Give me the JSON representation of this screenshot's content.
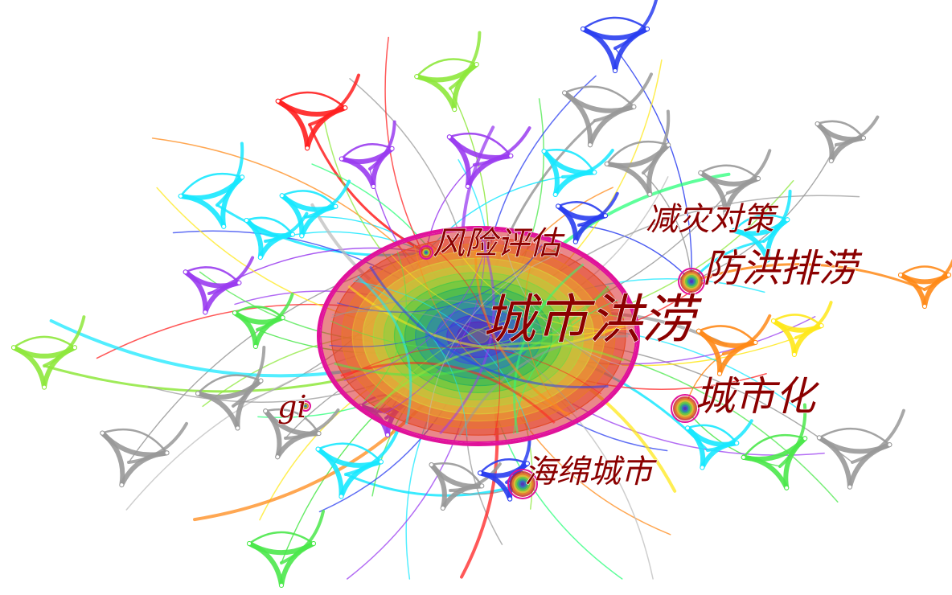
{
  "labels": {
    "main": "城市洪涝",
    "risk": "风险评估",
    "disaster": "减灾对策",
    "flood": "防洪排涝",
    "urban": "城市化",
    "sponge": "海绵城市",
    "gi": "gi"
  },
  "colors": {
    "label": "#8b0000",
    "ring_outer": "#e0129a",
    "ring_palette": [
      "#d9262a",
      "#e34b2a",
      "#e8762d",
      "#e9a233",
      "#dbc23a",
      "#b9cc3c",
      "#8bd040",
      "#55c944",
      "#32b55a",
      "#2a9e86",
      "#2f7fb8",
      "#3b5bd0",
      "#4a3ad0",
      "#5a2ab8",
      "#777777"
    ],
    "branch_palette": [
      "#999999",
      "#ff2020",
      "#18e8ff",
      "#9a3cf0",
      "#4be84b",
      "#2a3ef0",
      "#ffe81a",
      "#ff8a18",
      "#bdbdbd",
      "#2aff7a",
      "#8ee83c"
    ]
  }
}
